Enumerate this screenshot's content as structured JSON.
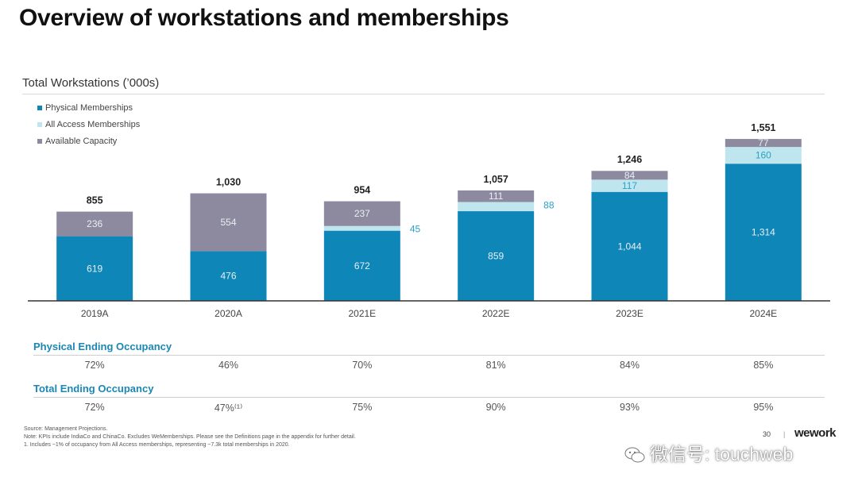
{
  "page": {
    "title": "Overview of workstations and memberships",
    "subtitle": "Total Workstations (’000s)"
  },
  "chart_data": {
    "type": "bar",
    "stacked": true,
    "title": "Total Workstations (’000s)",
    "categories": [
      "2019A",
      "2020A",
      "2021E",
      "2022E",
      "2023E",
      "2024E"
    ],
    "series": [
      {
        "name": "Physical Memberships",
        "color": "#0f86b8",
        "values": [
          619,
          476,
          672,
          859,
          1044,
          1314
        ],
        "labels": [
          "619",
          "476",
          "672",
          "859",
          "1,044",
          "1,314"
        ]
      },
      {
        "name": "All Access Memberships",
        "color": "#bfe6ee",
        "values": [
          0,
          0,
          45,
          88,
          117,
          160
        ],
        "labels": [
          "",
          "",
          "45",
          "88",
          "117",
          "160"
        ]
      },
      {
        "name": "Available Capacity",
        "color": "#8d8aa0",
        "values": [
          236,
          554,
          237,
          111,
          84,
          77
        ],
        "labels": [
          "236",
          "554",
          "237",
          "111",
          "84",
          "77"
        ]
      }
    ],
    "totals": [
      855,
      1030,
      954,
      1057,
      1246,
      1551
    ],
    "total_labels": [
      "855",
      "1,030",
      "954",
      "1,057",
      "1,246",
      "1,551"
    ],
    "ylim": [
      0,
      1650
    ],
    "legend_position": "top-left"
  },
  "occupancy": {
    "physical_label": "Physical Ending Occupancy",
    "physical_values": [
      "72%",
      "46%",
      "70%",
      "81%",
      "84%",
      "85%"
    ],
    "total_label": "Total Ending Occupancy",
    "total_values": [
      "72%",
      "47%⁽¹⁾",
      "75%",
      "90%",
      "93%",
      "95%"
    ]
  },
  "footnotes": {
    "source": "Source: Management Projections.",
    "note": "Note: KPIs include IndiaCo and ChinaCo. Excludes WeMemberships. Please see the Definitions page in the appendix for further detail.",
    "note1": "1.      Includes ~1% of occupancy from All Access memberships, representing ~7.3k total memberships in 2020."
  },
  "branding": {
    "page_number": "30",
    "divider": "|",
    "logo": "wework",
    "watermark": "微信号: touchweb"
  }
}
